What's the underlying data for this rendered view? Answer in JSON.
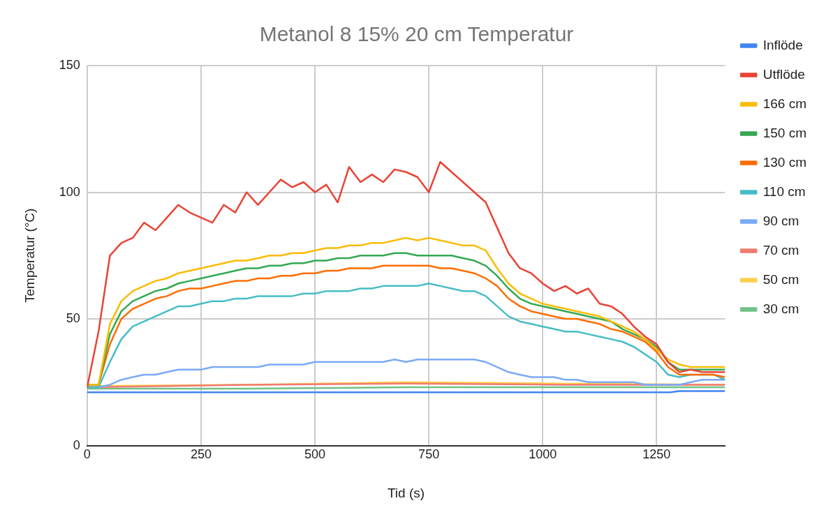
{
  "chart_data": {
    "type": "line",
    "title": "Metanol 8 15% 20 cm Temperatur",
    "xlabel": "Tid (s)",
    "ylabel": "Temperatur (°C)",
    "x": [
      0,
      25,
      50,
      75,
      100,
      125,
      150,
      175,
      200,
      225,
      250,
      275,
      300,
      325,
      350,
      375,
      400,
      425,
      450,
      475,
      500,
      525,
      550,
      575,
      600,
      625,
      650,
      675,
      700,
      725,
      750,
      775,
      800,
      825,
      850,
      875,
      900,
      925,
      950,
      975,
      1000,
      1025,
      1050,
      1075,
      1100,
      1125,
      1150,
      1175,
      1200,
      1225,
      1250,
      1275,
      1300,
      1325,
      1350,
      1375,
      1400
    ],
    "xlim": [
      0,
      1400
    ],
    "xticks": [
      0,
      250,
      500,
      750,
      1000,
      1250
    ],
    "ylim": [
      0,
      150
    ],
    "yticks": [
      0,
      50,
      100,
      150
    ],
    "grid": true,
    "legend": "right",
    "marker": "none",
    "line_style": "solid",
    "series": [
      {
        "name": "Inflöde",
        "color": "#4285f4",
        "x": [
          0,
          350,
          700,
          1050,
          1280,
          1300,
          1400
        ],
        "values": [
          21,
          21,
          21,
          21,
          21,
          21.5,
          21.5
        ]
      },
      {
        "name": "Utflöde",
        "color": "#ea4335",
        "values": [
          23,
          45,
          75,
          80,
          82,
          88,
          85,
          90,
          95,
          92,
          90,
          88,
          95,
          92,
          100,
          95,
          100,
          105,
          102,
          104,
          100,
          103,
          96,
          110,
          104,
          107,
          104,
          109,
          108,
          106,
          100,
          112,
          108,
          104,
          100,
          96,
          86,
          76,
          70,
          68,
          64,
          61,
          63,
          60,
          62,
          56,
          55,
          52,
          47,
          43,
          40,
          33,
          29,
          30,
          29,
          29,
          29
        ]
      },
      {
        "name": "166 cm",
        "color": "#fbbc04",
        "values": [
          24,
          24,
          48,
          57,
          61,
          63,
          65,
          66,
          68,
          69,
          70,
          71,
          72,
          73,
          73,
          74,
          75,
          75,
          76,
          76,
          77,
          78,
          78,
          79,
          79,
          80,
          80,
          81,
          82,
          81,
          82,
          81,
          80,
          79,
          79,
          77,
          70,
          64,
          60,
          58,
          56,
          55,
          54,
          53,
          52,
          51,
          49,
          47,
          45,
          42,
          38,
          34,
          32,
          31,
          31,
          31,
          31
        ]
      },
      {
        "name": "150 cm",
        "color": "#34a853",
        "values": [
          24,
          24,
          44,
          53,
          57,
          59,
          61,
          62,
          64,
          65,
          66,
          67,
          68,
          69,
          70,
          70,
          71,
          71,
          72,
          72,
          73,
          73,
          74,
          74,
          75,
          75,
          75,
          76,
          76,
          75,
          75,
          75,
          75,
          74,
          73,
          71,
          67,
          62,
          58,
          56,
          55,
          54,
          53,
          52,
          51,
          50,
          49,
          46,
          44,
          42,
          39,
          33,
          30,
          30,
          30,
          30,
          30
        ]
      },
      {
        "name": "130 cm",
        "color": "#ff6d01",
        "values": [
          24,
          24,
          40,
          50,
          54,
          56,
          58,
          59,
          61,
          62,
          62,
          63,
          64,
          65,
          65,
          66,
          66,
          67,
          67,
          68,
          68,
          69,
          69,
          70,
          70,
          70,
          71,
          71,
          71,
          71,
          71,
          70,
          70,
          69,
          68,
          66,
          63,
          58,
          55,
          53,
          52,
          51,
          50,
          50,
          49,
          48,
          46,
          45,
          43,
          41,
          37,
          31,
          28,
          28,
          28,
          28,
          27
        ]
      },
      {
        "name": "110 cm",
        "color": "#46bdc6",
        "values": [
          23,
          23,
          33,
          42,
          47,
          49,
          51,
          53,
          55,
          55,
          56,
          57,
          57,
          58,
          58,
          59,
          59,
          59,
          59,
          60,
          60,
          61,
          61,
          61,
          62,
          62,
          63,
          63,
          63,
          63,
          64,
          63,
          62,
          61,
          61,
          59,
          55,
          51,
          49,
          48,
          47,
          46,
          45,
          45,
          44,
          43,
          42,
          41,
          39,
          36,
          33,
          28,
          27,
          28,
          28,
          28,
          26
        ]
      },
      {
        "name": "90 cm",
        "color": "#7baaf7",
        "values": [
          23,
          23,
          24,
          26,
          27,
          28,
          28,
          29,
          30,
          30,
          30,
          31,
          31,
          31,
          31,
          31,
          32,
          32,
          32,
          32,
          33,
          33,
          33,
          33,
          33,
          33,
          33,
          34,
          33,
          34,
          34,
          34,
          34,
          34,
          34,
          33,
          31,
          29,
          28,
          27,
          27,
          27,
          26,
          26,
          25,
          25,
          25,
          25,
          25,
          24,
          24,
          24,
          24,
          25,
          26,
          26,
          26
        ]
      },
      {
        "name": "70 cm",
        "color": "#f07b72",
        "x": [
          0,
          350,
          700,
          1050,
          1400
        ],
        "values": [
          23,
          24,
          24.5,
          24,
          24
        ]
      },
      {
        "name": "50 cm",
        "color": "#fcd04f",
        "x": [
          0,
          350,
          700,
          1050,
          1400
        ],
        "values": [
          23.5,
          24,
          25,
          24.5,
          24
        ]
      },
      {
        "name": "30 cm",
        "color": "#71c287",
        "x": [
          0,
          350,
          700,
          1050,
          1400
        ],
        "values": [
          22.5,
          22.5,
          23,
          23,
          23
        ]
      }
    ]
  }
}
